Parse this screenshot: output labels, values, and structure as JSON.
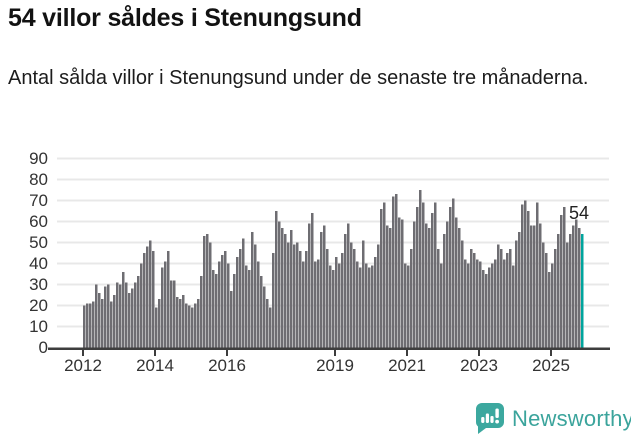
{
  "header": {
    "title": "54 villor såldes i Stenungsund",
    "subtitle": "Antal sålda villor i Stenungsund under de senaste tre månaderna."
  },
  "chart_data": {
    "type": "bar",
    "title": "54 villor såldes i Stenungsund",
    "xlabel": "",
    "ylabel": "",
    "frequency": "monthly",
    "x_start": "2012-01",
    "x_end": "2025-11",
    "ylim": [
      0,
      90
    ],
    "y_tick_step": 10,
    "y_tick_labels": [
      "0",
      "10",
      "20",
      "30",
      "40",
      "50",
      "60",
      "70",
      "80",
      "90"
    ],
    "x_tick_years": [
      "2012",
      "2014",
      "2016",
      "2019",
      "2021",
      "2023",
      "2025"
    ],
    "grid": true,
    "legend": false,
    "bar_color": "#6E6D72",
    "highlight_color": "#00A49D",
    "grid_color": "#E8E8E8",
    "axis_color": "#3D3D3D",
    "annotation_label": "54",
    "annotation_value": 54,
    "values": [
      20,
      21,
      21,
      22,
      30,
      26,
      23,
      29,
      30,
      22,
      25,
      31,
      30,
      36,
      31,
      26,
      28,
      31,
      34,
      40,
      45,
      48,
      51,
      46,
      19,
      23,
      38,
      41,
      46,
      32,
      32,
      24,
      23,
      25,
      21,
      20,
      19,
      21,
      23,
      34,
      53,
      54,
      50,
      37,
      35,
      41,
      44,
      46,
      40,
      27,
      35,
      43,
      47,
      52,
      39,
      37,
      55,
      49,
      41,
      34,
      29,
      23,
      19,
      45,
      65,
      60,
      57,
      54,
      50,
      56,
      49,
      50,
      46,
      41,
      46,
      59,
      64,
      41,
      42,
      55,
      58,
      47,
      39,
      37,
      43,
      40,
      45,
      54,
      59,
      50,
      47,
      41,
      38,
      51,
      40,
      38,
      39,
      43,
      49,
      66,
      69,
      58,
      57,
      72,
      73,
      62,
      61,
      40,
      39,
      47,
      60,
      67,
      75,
      69,
      59,
      57,
      64,
      69,
      47,
      40,
      54,
      60,
      67,
      71,
      62,
      57,
      51,
      42,
      40,
      47,
      45,
      42,
      41,
      37,
      35,
      38,
      40,
      42,
      49,
      47,
      42,
      45,
      47,
      39,
      51,
      55,
      68,
      70,
      65,
      58,
      58,
      69,
      59,
      50,
      45,
      36,
      40,
      47,
      54,
      63,
      67,
      50,
      54,
      58,
      61,
      57,
      54
    ]
  },
  "footer": {
    "brand": "Newsworthy"
  }
}
